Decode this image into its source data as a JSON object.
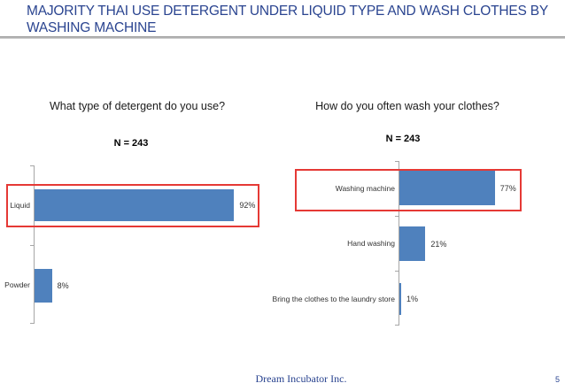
{
  "title": "MAJORITY THAI USE DETERGENT UNDER LIQUID TYPE AND WASH CLOTHES BY WASHING MACHINE",
  "footer": {
    "company": "Dream Incubator Inc.",
    "page_number": "5"
  },
  "colors": {
    "title_navy": "#2A4490",
    "bar_blue": "#4F81BD",
    "highlight_red": "#E53935",
    "axis_gray": "#A6A6A6"
  },
  "chart_data": [
    {
      "type": "bar",
      "orientation": "horizontal",
      "question": "What type of detergent do you use?",
      "sample_label": "N = 243",
      "categories": [
        "Liquid",
        "Powder"
      ],
      "values": [
        92,
        8
      ],
      "value_labels": [
        "92%",
        "8%"
      ],
      "xlim": [
        0,
        100
      ],
      "grid": false,
      "legend": false,
      "highlighted_category": "Liquid"
    },
    {
      "type": "bar",
      "orientation": "horizontal",
      "question": "How do you often wash your clothes?",
      "sample_label": "N = 243",
      "categories": [
        "Washing machine",
        "Hand washing",
        "Bring the clothes to the laundry store"
      ],
      "values": [
        77,
        21,
        1
      ],
      "value_labels": [
        "77%",
        "21%",
        "1%"
      ],
      "xlim": [
        0,
        100
      ],
      "grid": false,
      "legend": false,
      "highlighted_category": "Washing machine"
    }
  ]
}
